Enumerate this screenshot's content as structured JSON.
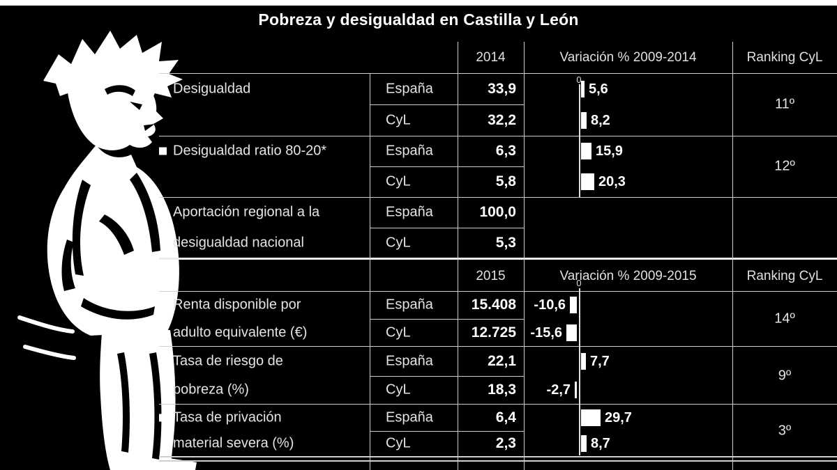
{
  "title": "Pobreza y desigualdad en Castilla y León",
  "colors": {
    "background": "#000000",
    "text": "#ffffff",
    "lines": "#cfcfcf",
    "bars": "#ffffff"
  },
  "sections": [
    {
      "year": "2014",
      "variation_header": "Variación % 2009-2014",
      "ranking_header": "Ranking CyL",
      "zero_label": "0"
    },
    {
      "year": "2015",
      "variation_header": "Variación % 2009-2015",
      "ranking_header": "Ranking CyL",
      "zero_label": "0"
    }
  ],
  "groups": [
    {
      "label1": "Desigualdad",
      "label2": "",
      "entity1": "España",
      "entity2": "CyL",
      "value1": "33,9",
      "value2": "32,2",
      "var1_label": "5,6",
      "var2_label": "8,2",
      "var1": 5.6,
      "var2": 8.2,
      "ranking": "11º"
    },
    {
      "label1": "Desigualdad ratio 80-20*",
      "label2": "",
      "entity1": "España",
      "entity2": "CyL",
      "value1": "6,3",
      "value2": "5,8",
      "var1_label": "15,9",
      "var2_label": "20,3",
      "var1": 15.9,
      "var2": 20.3,
      "ranking": "12º"
    },
    {
      "label1": "Aportación regional a la",
      "label2": "desigualdad nacional",
      "entity1": "España",
      "entity2": "CyL",
      "value1": "100,0",
      "value2": "5,3"
    },
    {
      "label1": "Renta disponible por",
      "label2": "adulto equivalente (€)",
      "entity1": "España",
      "entity2": "CyL",
      "value1": "15.408",
      "value2": "12.725",
      "var1_label": "-10,6",
      "var2_label": "-15,6",
      "var1": -10.6,
      "var2": -15.6,
      "ranking": "14º"
    },
    {
      "label1": "Tasa de riesgo de",
      "label2": "pobreza (%)",
      "entity1": "España",
      "entity2": "CyL",
      "value1": "22,1",
      "value2": "18,3",
      "var1_label": "7,7",
      "var2_label": "-2,7",
      "var1": 7.7,
      "var2": -2.7,
      "ranking": "9º"
    },
    {
      "label1": "Tasa de privación",
      "label2": "material severa (%)",
      "entity1": "España",
      "entity2": "CyL",
      "value1": "6,4",
      "value2": "2,3",
      "var1_label": "29,7",
      "var2_label": "8,7",
      "var1": 29.7,
      "var2": 8.7,
      "ranking": "3º"
    }
  ],
  "chart_data": [
    {
      "type": "table",
      "title": "Pobreza y desigualdad en Castilla y León",
      "year_column": "2014",
      "variation_period": "Variación % 2009-2014",
      "ranking_column": "Ranking CyL",
      "variation_axis_zero": 0,
      "rows": [
        {
          "indicator": "Desigualdad",
          "espana": 33.9,
          "cyl": 32.2,
          "variacion_espana_pct": 5.6,
          "variacion_cyl_pct": 8.2,
          "ranking_cyl": "11º"
        },
        {
          "indicator": "Desigualdad ratio 80-20*",
          "espana": 6.3,
          "cyl": 5.8,
          "variacion_espana_pct": 15.9,
          "variacion_cyl_pct": 20.3,
          "ranking_cyl": "12º"
        },
        {
          "indicator": "Aportación regional a la desigualdad nacional",
          "espana": 100.0,
          "cyl": 5.3,
          "variacion_espana_pct": null,
          "variacion_cyl_pct": null,
          "ranking_cyl": null
        }
      ]
    },
    {
      "type": "table",
      "year_column": "2015",
      "variation_period": "Variación % 2009-2015",
      "ranking_column": "Ranking CyL",
      "variation_axis_zero": 0,
      "rows": [
        {
          "indicator": "Renta disponible por adulto equivalente (€)",
          "espana": 15408,
          "cyl": 12725,
          "variacion_espana_pct": -10.6,
          "variacion_cyl_pct": -15.6,
          "ranking_cyl": "14º"
        },
        {
          "indicator": "Tasa de riesgo de pobreza (%)",
          "espana": 22.1,
          "cyl": 18.3,
          "variacion_espana_pct": 7.7,
          "variacion_cyl_pct": -2.7,
          "ranking_cyl": "9º"
        },
        {
          "indicator": "Tasa de privación material severa (%)",
          "espana": 6.4,
          "cyl": 2.3,
          "variacion_espana_pct": 29.7,
          "variacion_cyl_pct": 8.7,
          "ranking_cyl": "3º"
        }
      ]
    }
  ]
}
